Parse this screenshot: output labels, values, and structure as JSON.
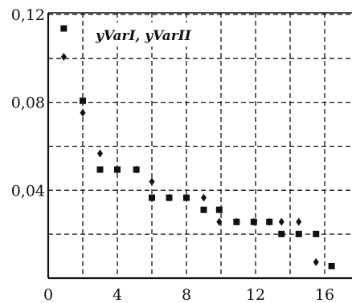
{
  "chart_data": {
    "type": "scatter",
    "title": "",
    "xlabel": "",
    "ylabel": "",
    "legend_text": "yVarI, yVarII",
    "legend_placement": "top-right",
    "grid": true,
    "xlim": [
      0,
      17
    ],
    "ylim": [
      0,
      0.12
    ],
    "x_ticks": [
      {
        "value": 0,
        "label": "0"
      },
      {
        "value": 4,
        "label": "4"
      },
      {
        "value": 8,
        "label": "8"
      },
      {
        "value": 12,
        "label": "12"
      },
      {
        "value": 16,
        "label": "16"
      }
    ],
    "y_ticks": [
      {
        "value": 0.04,
        "label": "0,04"
      },
      {
        "value": 0.08,
        "label": "0,08"
      },
      {
        "value": 0.12,
        "label": "0,12"
      }
    ],
    "series": [
      {
        "marker": "square",
        "points": [
          [
            0.9,
            0.1136
          ],
          [
            2.0,
            0.0807
          ],
          [
            3.0,
            0.0494
          ],
          [
            4.0,
            0.0494
          ],
          [
            5.1,
            0.0494
          ],
          [
            6.0,
            0.0366
          ],
          [
            7.0,
            0.0366
          ],
          [
            8.0,
            0.0366
          ],
          [
            9.0,
            0.0311
          ],
          [
            9.9,
            0.0311
          ],
          [
            10.9,
            0.0256
          ],
          [
            11.9,
            0.0256
          ],
          [
            12.8,
            0.0256
          ],
          [
            13.5,
            0.0201
          ],
          [
            14.5,
            0.0201
          ],
          [
            15.5,
            0.0201
          ],
          [
            16.4,
            0.0055
          ]
        ]
      },
      {
        "marker": "diamond",
        "points": [
          [
            0.9,
            0.1007
          ],
          [
            2.0,
            0.0752
          ],
          [
            3.0,
            0.0567
          ],
          [
            4.0,
            0.0494
          ],
          [
            5.1,
            0.0494
          ],
          [
            6.0,
            0.0439
          ],
          [
            7.0,
            0.0366
          ],
          [
            8.0,
            0.0366
          ],
          [
            9.0,
            0.0366
          ],
          [
            9.9,
            0.0256
          ],
          [
            10.9,
            0.0256
          ],
          [
            11.9,
            0.0256
          ],
          [
            12.8,
            0.0256
          ],
          [
            13.5,
            0.0256
          ],
          [
            14.5,
            0.0256
          ],
          [
            15.5,
            0.0073
          ]
        ]
      }
    ]
  }
}
